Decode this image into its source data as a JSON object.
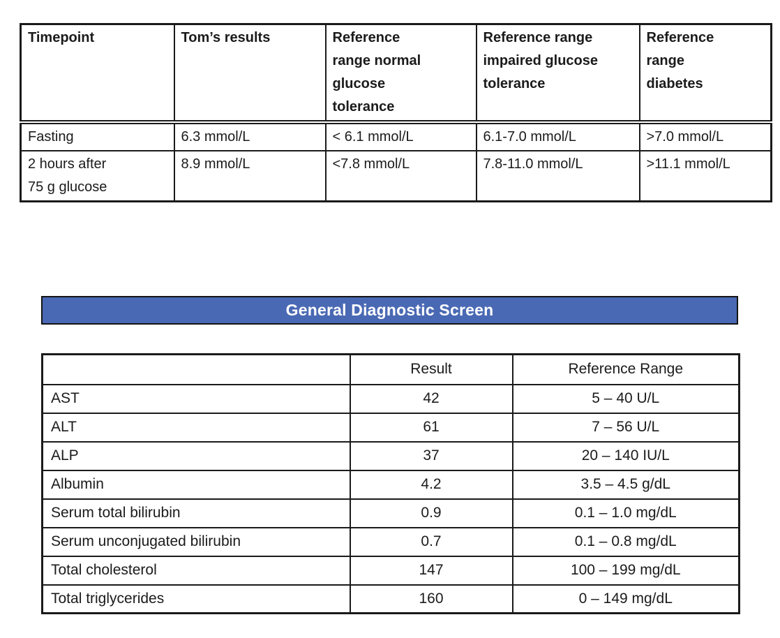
{
  "colors": {
    "banner_background": "#4A69B4",
    "banner_text": "#FFFFFF",
    "table_border": "#1A1A1A",
    "text": "#1B1B1B",
    "page_background": "#FFFFFF"
  },
  "glucose_table": {
    "headers": [
      "Timepoint",
      "Tom’s results",
      "Reference range normal glucose tolerance",
      "Reference range impaired glucose tolerance",
      "Reference range diabetes"
    ],
    "rows": [
      [
        "Fasting",
        "6.3 mmol/L",
        "< 6.1 mmol/L",
        "6.1-7.0 mmol/L",
        ">7.0 mmol/L"
      ],
      [
        "2 hours after 75 g glucose",
        "8.9 mmol/L",
        "<7.8 mmol/L",
        "7.8-11.0 mmol/L",
        ">11.1 mmol/L"
      ]
    ]
  },
  "banner": {
    "title": "General Diagnostic Screen"
  },
  "diagnostic_table": {
    "headers": [
      "",
      "Result",
      "Reference Range"
    ],
    "rows": [
      [
        "AST",
        "42",
        "5 – 40 U/L"
      ],
      [
        "ALT",
        "61",
        "7 – 56 U/L"
      ],
      [
        "ALP",
        "37",
        "20 – 140 IU/L"
      ],
      [
        "Albumin",
        "4.2",
        "3.5 – 4.5 g/dL"
      ],
      [
        "Serum total bilirubin",
        "0.9",
        "0.1 – 1.0 mg/dL"
      ],
      [
        "Serum unconjugated bilirubin",
        "0.7",
        "0.1 – 0.8 mg/dL"
      ],
      [
        "Total cholesterol",
        "147",
        "100 – 199 mg/dL"
      ],
      [
        "Total triglycerides",
        "160",
        "0 – 149 mg/dL"
      ]
    ]
  }
}
